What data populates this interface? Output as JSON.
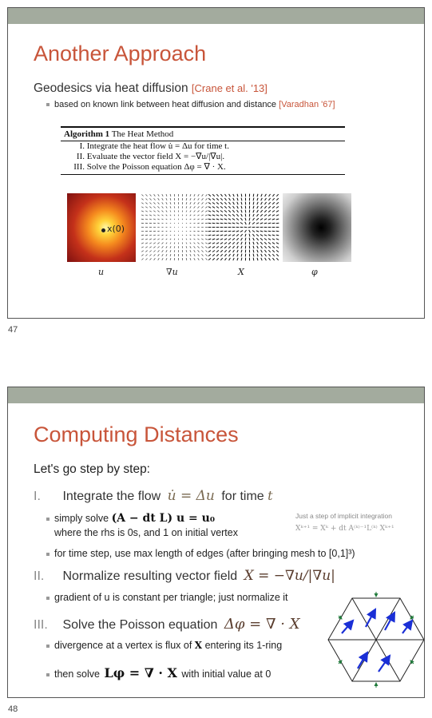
{
  "slide1": {
    "title": "Another Approach",
    "subtitle": "Geodesics via heat diffusion",
    "subtitle_ref": "[Crane et al. '13]",
    "bullet": "based on known link between heat diffusion and distance",
    "bullet_ref": "[Varadhan '67]",
    "algorithm": {
      "header_bold": "Algorithm 1",
      "header_rest": "The Heat Method",
      "steps": [
        {
          "num": "I.",
          "text": "Integrate the heat flow u̇ = Δu for time t."
        },
        {
          "num": "II.",
          "text": "Evaluate the vector field X = −∇u/|∇u|."
        },
        {
          "num": "III.",
          "text": "Solve the Poisson equation Δφ = ∇ · X."
        }
      ]
    },
    "heat_label": "x(0)",
    "captions": [
      "u",
      "∇u",
      "X",
      "φ"
    ],
    "page_number": "47"
  },
  "slide2": {
    "title": "Computing Distances",
    "intro": "Let's go step by step:",
    "step1": {
      "num": "I.",
      "text": "Integrate the flow",
      "math": "u̇ = Δu",
      "suffix": "for time",
      "var": "t"
    },
    "step1_b1": {
      "prefix": "simply solve",
      "math": "(A − dt L) u = u₀"
    },
    "step1_b1_line2": "where the rhs is 0s, and 1 on initial vertex",
    "note_title": "Just a step of implicit integration",
    "note_math": "Xᵏ⁺¹ = Xᵏ + dt A⁽ᵏ⁾⁻¹L⁽ᵏ⁾ Xᵏ⁺¹",
    "step1_b2": "for time step, use max length of edges (after bringing mesh to [0,1]³)",
    "step2": {
      "num": "II.",
      "text": "Normalize resulting vector field",
      "math": "X = −∇u/|∇u|"
    },
    "step2_b1": "gradient of u is constant per triangle; just normalize it",
    "step3": {
      "num": "III.",
      "text": "Solve the Poisson equation",
      "math": "Δφ = ∇ · X"
    },
    "step3_b1": {
      "prefix": "divergence at a vertex is flux of",
      "var": "X",
      "suffix": "entering its 1-ring"
    },
    "step3_b2": {
      "prefix": "then solve",
      "math": "Lφ = ∇ · X",
      "suffix": "with initial value at 0"
    },
    "page_number": "48"
  },
  "colors": {
    "accent": "#c8553a",
    "bar": "#a3ab9e",
    "arrow_blue": "#1a2fd6",
    "arrow_green": "#1f7a3a"
  }
}
